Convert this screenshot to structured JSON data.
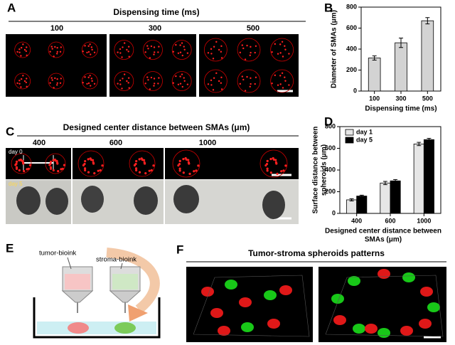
{
  "panels": [
    {
      "letter": "A",
      "title": "Dispensing time (ms)",
      "labels": [
        "100",
        "300",
        "500"
      ]
    },
    {
      "letter": "B"
    },
    {
      "letter": "C",
      "title": "Designed center distance between SMAs (μm)",
      "labels": [
        "400",
        "600",
        "1000"
      ],
      "image_labels": [
        "day 0",
        "day 5"
      ]
    },
    {
      "letter": "D"
    },
    {
      "letter": "E",
      "labels": [
        "tumor-bioink",
        "stroma-bioink"
      ]
    },
    {
      "letter": "F",
      "title": "Tumor-stroma spheroids patterns"
    }
  ],
  "chart_data": [
    {
      "type": "bar",
      "categories": [
        "100",
        "300",
        "500"
      ],
      "values": [
        315,
        460,
        670
      ],
      "errors": [
        20,
        45,
        30
      ],
      "color": "#d3d3d3",
      "ylabel": [
        "Diameter of SMAs (μm)"
      ],
      "xlabel": [
        "Dispensing time (ms)"
      ],
      "ylim": [
        0,
        800
      ],
      "yticks": [
        0,
        200,
        400,
        600,
        800
      ]
    },
    {
      "type": "bar",
      "categories": [
        "400",
        "600",
        "1000"
      ],
      "series": [
        {
          "name": "day 1",
          "color": "#e6e6e6",
          "values": [
            125,
            280,
            640
          ],
          "errors": [
            10,
            15,
            15
          ]
        },
        {
          "name": "day 5",
          "color": "#000000",
          "values": [
            160,
            300,
            680
          ],
          "errors": [
            8,
            12,
            12
          ]
        }
      ],
      "ylabel": [
        "Surface distance between",
        "spheroids (μm)"
      ],
      "xlabel": [
        "Designed center distance between",
        "SMAs (μm)"
      ],
      "ylim": [
        0,
        800
      ],
      "yticks": [
        0,
        200,
        400,
        600,
        800
      ],
      "legend": "top-left"
    }
  ]
}
